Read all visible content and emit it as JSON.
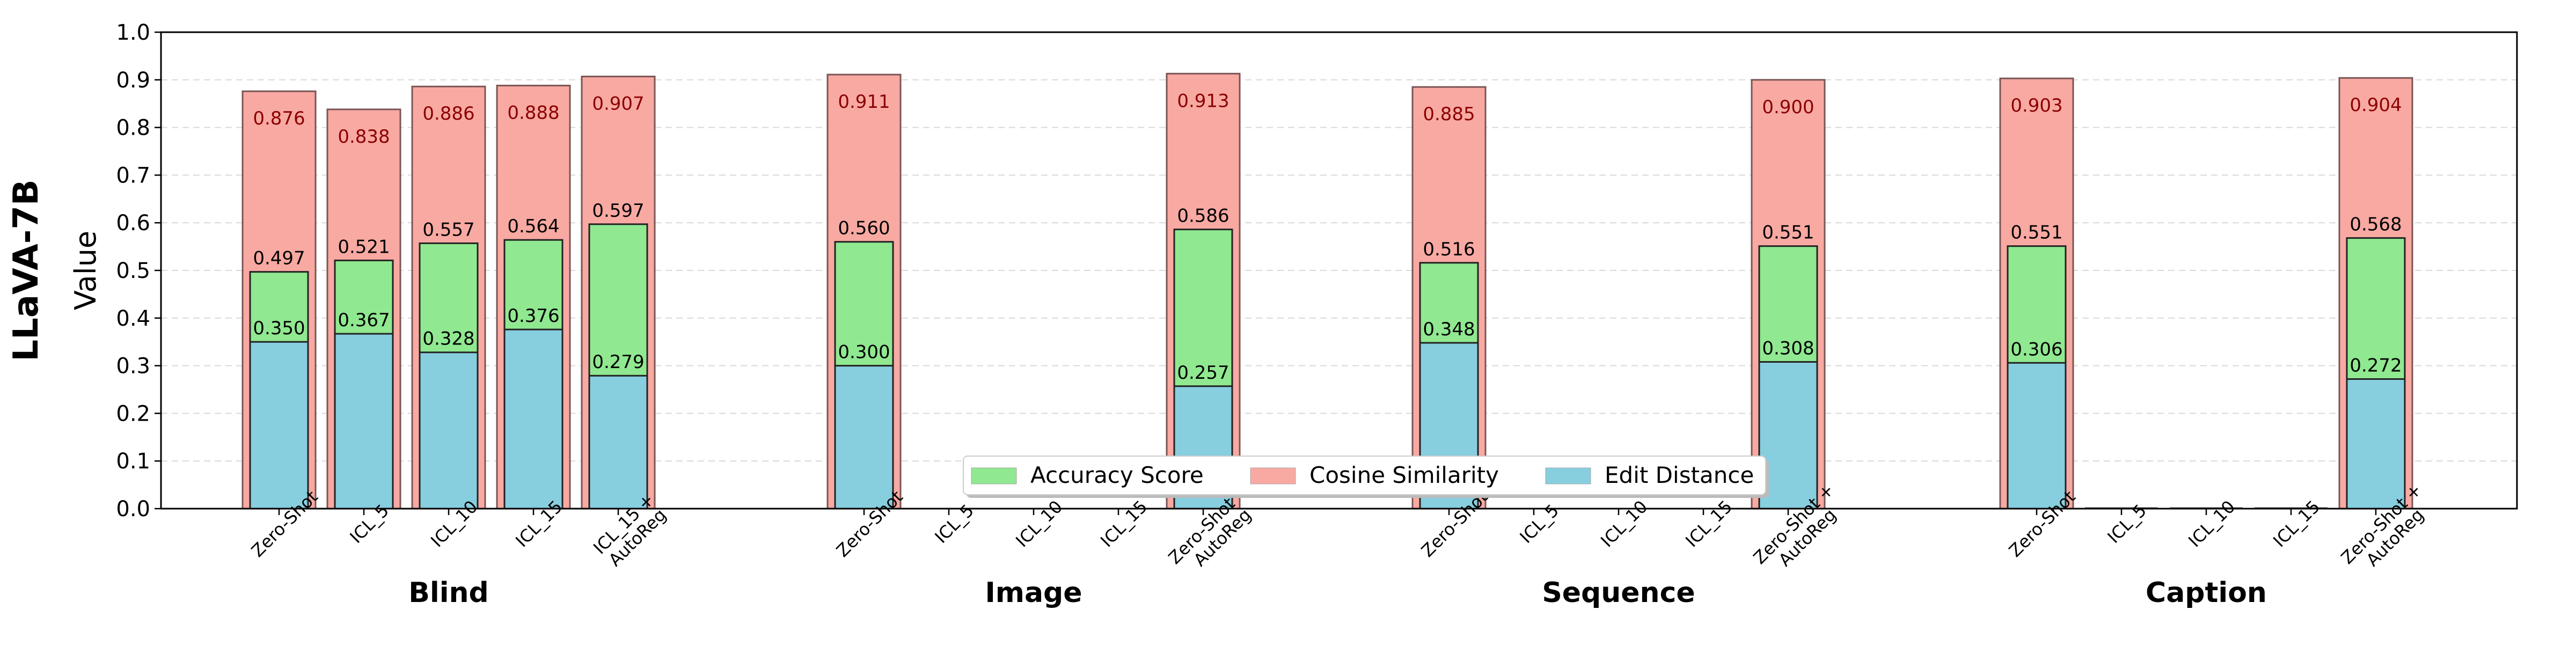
{
  "chart_data": {
    "type": "bar",
    "row_label": "LLaVA-7B",
    "ylabel": "Value",
    "ylim": [
      0,
      1.0
    ],
    "yticks": [
      "0.0",
      "0.1",
      "0.2",
      "0.3",
      "0.4",
      "0.5",
      "0.6",
      "0.7",
      "0.8",
      "0.9",
      "1.0"
    ],
    "grid": "horizontal dashed",
    "legend_position": "lower center",
    "series": [
      {
        "key": "cos",
        "name": "Cosine Similarity",
        "color": "#f8a9a2"
      },
      {
        "key": "acc",
        "name": "Accuracy Score",
        "color": "#90e890"
      },
      {
        "key": "edit",
        "name": "Edit Distance",
        "color": "#87cedf"
      }
    ],
    "groups": [
      {
        "name": "Blind",
        "bars": [
          {
            "label": "Zero-Shot",
            "cos": 0.876,
            "acc": 0.497,
            "edit": 0.35
          },
          {
            "label": "ICL_5",
            "cos": 0.838,
            "acc": 0.521,
            "edit": 0.367
          },
          {
            "label": "ICL_10",
            "cos": 0.886,
            "acc": 0.557,
            "edit": 0.328
          },
          {
            "label": "ICL_15",
            "cos": 0.888,
            "acc": 0.564,
            "edit": 0.376
          },
          {
            "label": "ICL_15 +\nAutoReg",
            "cos": 0.907,
            "acc": 0.597,
            "edit": 0.279
          }
        ]
      },
      {
        "name": "Image",
        "bars": [
          {
            "label": "Zero-Shot",
            "cos": 0.911,
            "acc": 0.56,
            "edit": 0.3
          },
          {
            "label": "ICL_5",
            "cos": null,
            "acc": null,
            "edit": null
          },
          {
            "label": "ICL_10",
            "cos": null,
            "acc": null,
            "edit": null
          },
          {
            "label": "ICL_15",
            "cos": null,
            "acc": null,
            "edit": null
          },
          {
            "label": "Zero-Shot +\nAutoReg",
            "cos": 0.913,
            "acc": 0.586,
            "edit": 0.257
          }
        ]
      },
      {
        "name": "Sequence",
        "bars": [
          {
            "label": "Zero-Shot",
            "cos": 0.885,
            "acc": 0.516,
            "edit": 0.348
          },
          {
            "label": "ICL_5",
            "cos": null,
            "acc": null,
            "edit": null
          },
          {
            "label": "ICL_10",
            "cos": null,
            "acc": null,
            "edit": null
          },
          {
            "label": "ICL_15",
            "cos": null,
            "acc": null,
            "edit": null
          },
          {
            "label": "Zero-Shot +\nAutoReg",
            "cos": 0.9,
            "acc": 0.551,
            "edit": 0.308
          }
        ]
      },
      {
        "name": "Caption",
        "bars": [
          {
            "label": "Zero-Shot",
            "cos": 0.903,
            "acc": 0.551,
            "edit": 0.306
          },
          {
            "label": "ICL_5",
            "cos": 0,
            "acc": 0,
            "edit": 0
          },
          {
            "label": "ICL_10",
            "cos": 0,
            "acc": 0,
            "edit": 0
          },
          {
            "label": "ICL_15",
            "cos": 0,
            "acc": 0,
            "edit": 0
          },
          {
            "label": "Zero-Shot +\nAutoReg",
            "cos": 0.904,
            "acc": 0.568,
            "edit": 0.272
          }
        ]
      }
    ]
  }
}
